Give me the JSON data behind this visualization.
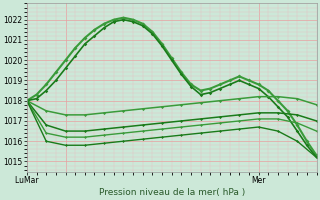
{
  "background_color": "#cce8d8",
  "plot_bg_color": "#cce8d8",
  "grid_major_color": "#e8a0a0",
  "grid_minor_color": "#e8c0c0",
  "ylim": [
    1014.5,
    1022.8
  ],
  "yticks": [
    1015,
    1016,
    1017,
    1018,
    1019,
    1020,
    1021,
    1022
  ],
  "xlim": [
    0,
    60
  ],
  "xtick_positions": [
    0,
    8,
    48
  ],
  "xtick_labels": [
    "Lu​Mar",
    "",
    "Mer"
  ],
  "xlabel": "Pression niveau de la mer( hPa )",
  "series": [
    {
      "x": [
        0,
        2,
        4,
        6,
        8,
        10,
        12,
        14,
        16,
        18,
        20,
        22,
        24,
        26,
        28,
        30,
        32,
        34,
        36,
        38,
        40,
        42,
        44,
        46,
        48,
        50,
        52,
        54,
        56,
        58,
        60
      ],
      "y": [
        1018.0,
        1018.3,
        1018.8,
        1019.4,
        1020.0,
        1020.6,
        1021.1,
        1021.5,
        1021.8,
        1022.0,
        1022.1,
        1022.0,
        1021.8,
        1021.4,
        1020.8,
        1020.1,
        1019.4,
        1018.8,
        1018.5,
        1018.6,
        1018.8,
        1019.0,
        1019.2,
        1019.0,
        1018.8,
        1018.5,
        1018.0,
        1017.5,
        1016.8,
        1016.0,
        1015.3
      ],
      "color": "#3a9b3a",
      "lw": 1.5,
      "marker": "D",
      "ms": 2.0
    },
    {
      "x": [
        0,
        2,
        4,
        6,
        8,
        10,
        12,
        14,
        16,
        18,
        20,
        22,
        24,
        26,
        28,
        30,
        32,
        34,
        36,
        38,
        40,
        42,
        44,
        46,
        48,
        50,
        52,
        54,
        56,
        58,
        60
      ],
      "y": [
        1018.0,
        1018.1,
        1018.5,
        1019.0,
        1019.6,
        1020.2,
        1020.8,
        1021.2,
        1021.6,
        1021.9,
        1022.0,
        1021.9,
        1021.7,
        1021.3,
        1020.7,
        1020.0,
        1019.3,
        1018.7,
        1018.3,
        1018.4,
        1018.6,
        1018.8,
        1019.0,
        1018.8,
        1018.6,
        1018.2,
        1017.7,
        1017.2,
        1016.5,
        1015.8,
        1015.2
      ],
      "color": "#1a7b1a",
      "lw": 1.2,
      "marker": "D",
      "ms": 1.8
    },
    {
      "x": [
        0,
        4,
        8,
        12,
        16,
        20,
        24,
        28,
        32,
        36,
        40,
        44,
        48,
        52,
        56,
        60
      ],
      "y": [
        1018.0,
        1017.5,
        1017.3,
        1017.3,
        1017.4,
        1017.5,
        1017.6,
        1017.7,
        1017.8,
        1017.9,
        1018.0,
        1018.1,
        1018.2,
        1018.2,
        1018.1,
        1017.8
      ],
      "color": "#3a9b3a",
      "lw": 1.1,
      "marker": "D",
      "ms": 1.6
    },
    {
      "x": [
        0,
        4,
        8,
        12,
        16,
        20,
        24,
        28,
        32,
        36,
        40,
        44,
        48,
        52,
        56,
        60
      ],
      "y": [
        1018.0,
        1016.8,
        1016.5,
        1016.5,
        1016.6,
        1016.7,
        1016.8,
        1016.9,
        1017.0,
        1017.1,
        1017.2,
        1017.3,
        1017.4,
        1017.4,
        1017.3,
        1017.0
      ],
      "color": "#1a7b1a",
      "lw": 1.1,
      "marker": "D",
      "ms": 1.6
    },
    {
      "x": [
        0,
        4,
        8,
        12,
        16,
        20,
        24,
        28,
        32,
        36,
        40,
        44,
        48,
        52,
        56,
        60
      ],
      "y": [
        1018.0,
        1016.4,
        1016.2,
        1016.2,
        1016.3,
        1016.4,
        1016.5,
        1016.6,
        1016.7,
        1016.8,
        1016.9,
        1017.0,
        1017.1,
        1017.1,
        1016.9,
        1016.5
      ],
      "color": "#3a9b3a",
      "lw": 1.0,
      "marker": "D",
      "ms": 1.5
    },
    {
      "x": [
        0,
        4,
        8,
        12,
        16,
        20,
        24,
        28,
        32,
        36,
        40,
        44,
        48,
        52,
        56,
        60
      ],
      "y": [
        1018.0,
        1016.0,
        1015.8,
        1015.8,
        1015.9,
        1016.0,
        1016.1,
        1016.2,
        1016.3,
        1016.4,
        1016.5,
        1016.6,
        1016.7,
        1016.5,
        1016.0,
        1015.2
      ],
      "color": "#1a7b1a",
      "lw": 1.0,
      "marker": "D",
      "ms": 1.5
    }
  ]
}
